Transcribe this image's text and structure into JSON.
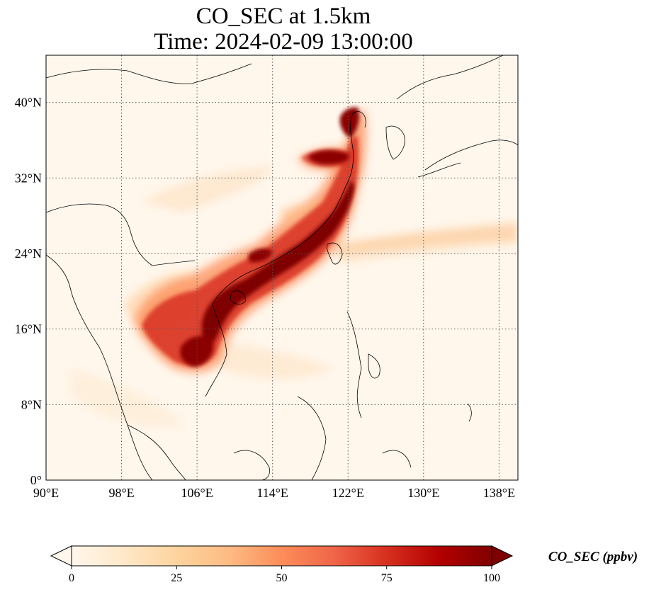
{
  "title": {
    "line1": "CO_SEC at 1.5km",
    "line2": "Time: 2024-02-09 13:00:00"
  },
  "map": {
    "lon_range": [
      90,
      140
    ],
    "lat_range": [
      0,
      45
    ],
    "lon_ticks": [
      "90°E",
      "98°E",
      "106°E",
      "114°E",
      "122°E",
      "130°E",
      "138°E"
    ],
    "lat_ticks": [
      "0°",
      "8°N",
      "16°N",
      "24°N",
      "32°N",
      "40°N"
    ],
    "gridlines": "dotted",
    "background_color": "#fff7ec"
  },
  "colorbar": {
    "label": "CO_SEC (ppbv)",
    "ticks": [
      "0",
      "25",
      "50",
      "75",
      "100"
    ],
    "range": [
      0,
      100
    ],
    "extend": "both",
    "colormap": "OrRd",
    "colors": [
      "#fff7ec",
      "#fee8c8",
      "#fdd49e",
      "#fdbb84",
      "#fc8d59",
      "#ef6548",
      "#d7301f",
      "#b30000",
      "#7f0000"
    ]
  }
}
